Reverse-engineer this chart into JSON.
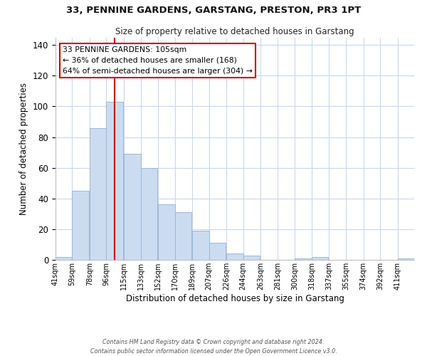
{
  "title1": "33, PENNINE GARDENS, GARSTANG, PRESTON, PR3 1PT",
  "title2": "Size of property relative to detached houses in Garstang",
  "xlabel": "Distribution of detached houses by size in Garstang",
  "ylabel": "Number of detached properties",
  "bar_color": "#ccdcf0",
  "bar_edge_color": "#9ab8d8",
  "vline_color": "#cc0000",
  "vline_x": 105,
  "categories": [
    "41sqm",
    "59sqm",
    "78sqm",
    "96sqm",
    "115sqm",
    "133sqm",
    "152sqm",
    "170sqm",
    "189sqm",
    "207sqm",
    "226sqm",
    "244sqm",
    "263sqm",
    "281sqm",
    "300sqm",
    "318sqm",
    "337sqm",
    "355sqm",
    "374sqm",
    "392sqm",
    "411sqm"
  ],
  "bin_edges": [
    41,
    59,
    78,
    96,
    115,
    133,
    152,
    170,
    189,
    207,
    226,
    244,
    263,
    281,
    300,
    318,
    337,
    355,
    374,
    392,
    411
  ],
  "values": [
    2,
    45,
    86,
    103,
    69,
    60,
    36,
    31,
    19,
    11,
    4,
    3,
    0,
    0,
    1,
    2,
    0,
    0,
    0,
    0,
    1
  ],
  "ylim": [
    0,
    145
  ],
  "yticks": [
    0,
    20,
    40,
    60,
    80,
    100,
    120,
    140
  ],
  "annotation_title": "33 PENNINE GARDENS: 105sqm",
  "annotation_line1": "← 36% of detached houses are smaller (168)",
  "annotation_line2": "64% of semi-detached houses are larger (304) →",
  "box_color": "#ffffff",
  "box_edge_color": "#cc0000",
  "footer1": "Contains HM Land Registry data © Crown copyright and database right 2024.",
  "footer2": "Contains public sector information licensed under the Open Government Licence v3.0."
}
